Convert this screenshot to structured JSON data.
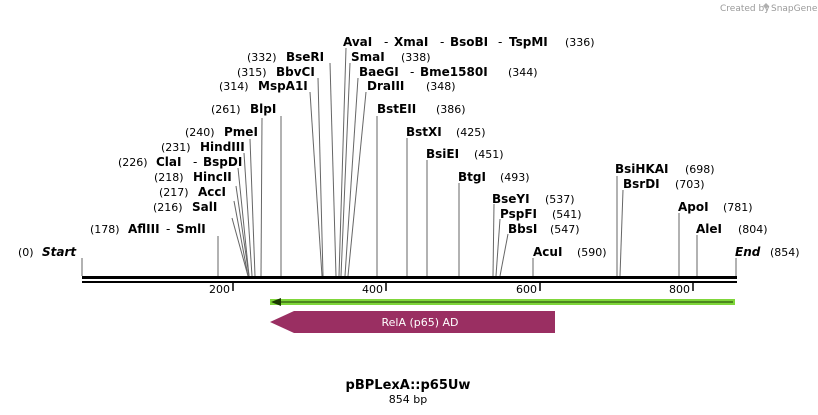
{
  "credit": {
    "prefix": "Created by",
    "brand": "SnapGene"
  },
  "map": {
    "name": "pBPLexA::p65Uw",
    "length_label": "854 bp",
    "total_bp": 854,
    "start": {
      "pos": "(0)",
      "label": "Start"
    },
    "end": {
      "pos": "(854)",
      "label": "End"
    },
    "ticks": [
      "200",
      "400",
      "600",
      "800"
    ]
  },
  "sites": [
    {
      "name": "AflIII",
      "pos": "(178)"
    },
    {
      "name": "SmlI"
    },
    {
      "name": "SalI",
      "pos": "(216)"
    },
    {
      "name": "AccI",
      "pos": "(217)"
    },
    {
      "name": "HincII",
      "pos": "(218)"
    },
    {
      "name": "ClaI",
      "pos": "(226)"
    },
    {
      "name": "BspDI"
    },
    {
      "name": "HindIII",
      "pos": "(231)"
    },
    {
      "name": "PmeI",
      "pos": "(240)"
    },
    {
      "name": "BlpI",
      "pos": "(261)"
    },
    {
      "name": "MspA1I",
      "pos": "(314)"
    },
    {
      "name": "BbvCI",
      "pos": "(315)"
    },
    {
      "name": "BseRI",
      "pos": "(332)"
    },
    {
      "name": "AvaI"
    },
    {
      "name": "XmaI"
    },
    {
      "name": "BsoBI"
    },
    {
      "name": "TspMI",
      "pos": "(336)"
    },
    {
      "name": "SmaI",
      "pos": "(338)"
    },
    {
      "name": "BaeGI"
    },
    {
      "name": "Bme1580I",
      "pos": "(344)"
    },
    {
      "name": "DraIII",
      "pos": "(348)"
    },
    {
      "name": "BstEII",
      "pos": "(386)"
    },
    {
      "name": "BstXI",
      "pos": "(425)"
    },
    {
      "name": "BsiEI",
      "pos": "(451)"
    },
    {
      "name": "BtgI",
      "pos": "(493)"
    },
    {
      "name": "BseYI",
      "pos": "(537)"
    },
    {
      "name": "PspFI",
      "pos": "(541)"
    },
    {
      "name": "BbsI",
      "pos": "(547)"
    },
    {
      "name": "AcuI",
      "pos": "(590)"
    },
    {
      "name": "BsiHKAI",
      "pos": "(698)"
    },
    {
      "name": "BsrDI",
      "pos": "(703)"
    },
    {
      "name": "ApoI",
      "pos": "(781)"
    },
    {
      "name": "AleI",
      "pos": "(804)"
    }
  ],
  "features": [
    {
      "name": "RelA (p65) AD",
      "color": "#9a2f62",
      "strand": "reverse"
    }
  ],
  "colors": {
    "feature_line": "#7fd63a",
    "ruler": "#000000",
    "leader": "#666666"
  }
}
